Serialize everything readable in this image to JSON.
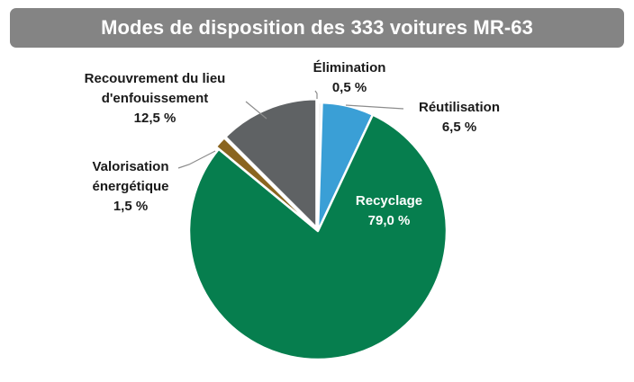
{
  "chart_data": {
    "type": "pie",
    "title": "Modes de disposition des 333 voitures MR-63",
    "start_angle_deg": 0,
    "direction": "clockwise",
    "slices": [
      {
        "label": "Élimination",
        "value": 0.5,
        "display": "0,5 %",
        "color": "#f2f2f2"
      },
      {
        "label": "Réutilisation",
        "value": 6.5,
        "display": "6,5 %",
        "color": "#3a9fd6"
      },
      {
        "label": "Recyclage",
        "value": 79.0,
        "display": "79,0 %",
        "color": "#067e4e"
      },
      {
        "label": "Valorisation énergétique",
        "value": 1.5,
        "display": "1,5 %",
        "color": "#8a6520"
      },
      {
        "label": "Recouvrement du lieu d'enfouissement",
        "value": 12.5,
        "display": "12,5 %",
        "color": "#5f6264"
      }
    ],
    "label_lines": {
      "Élimination": [
        "Élimination",
        "0,5 %"
      ],
      "Réutilisation": [
        "Réutilisation",
        "6,5 %"
      ],
      "Recyclage": [
        "Recyclage",
        "79,0 %"
      ],
      "Valorisation énergétique": [
        "Valorisation",
        "énergétique",
        "1,5 %"
      ],
      "Recouvrement du lieu d'enfouissement": [
        "Recouvrement du lieu",
        "d'enfouissement",
        "12,5 %"
      ]
    },
    "legend": "none"
  }
}
